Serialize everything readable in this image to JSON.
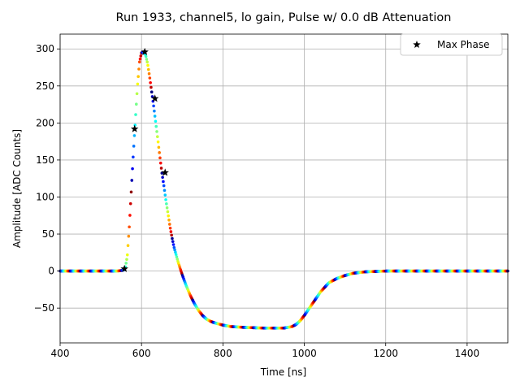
{
  "chart_data": {
    "type": "scatter",
    "title": "Run 1933, channel5, lo gain, Pulse w/ 0.0 dB Attenuation",
    "xlabel": "Time [ns]",
    "ylabel": "Amplitude [ADC Counts]",
    "xlim": [
      400,
      1500
    ],
    "ylim": [
      -97,
      320
    ],
    "xticks": [
      400,
      600,
      800,
      1000,
      1200,
      1400
    ],
    "yticks": [
      -50,
      0,
      50,
      100,
      150,
      200,
      250,
      300
    ],
    "ytick_labels": [
      "−50",
      "0",
      "50",
      "100",
      "150",
      "200",
      "250",
      "300"
    ],
    "grid": true,
    "legend_position": "top-right",
    "series": [
      {
        "name": "",
        "kind": "pulse-waveform",
        "color": "jet colormap (phase)",
        "x": [
          400,
          540,
          555,
          560,
          565,
          570,
          575,
          580,
          585,
          590,
          595,
          600,
          605,
          610,
          615,
          620,
          625,
          630,
          635,
          640,
          645,
          650,
          655,
          660,
          665,
          670,
          675,
          680,
          690,
          700,
          710,
          720,
          730,
          740,
          750,
          760,
          770,
          780,
          800,
          820,
          850,
          900,
          950,
          970,
          980,
          990,
          1000,
          1010,
          1020,
          1030,
          1040,
          1050,
          1060,
          1080,
          1100,
          1120,
          1150,
          1200,
          1300,
          1400,
          1500
        ],
        "y": [
          0,
          0,
          1,
          4,
          20,
          60,
          110,
          160,
          205,
          250,
          282,
          295,
          296,
          292,
          280,
          262,
          242,
          222,
          200,
          178,
          155,
          133,
          115,
          95,
          78,
          60,
          45,
          32,
          12,
          -5,
          -20,
          -33,
          -44,
          -53,
          -60,
          -65,
          -68,
          -70,
          -73,
          -75,
          -76,
          -77,
          -77,
          -75,
          -72,
          -67,
          -60,
          -52,
          -44,
          -36,
          -28,
          -22,
          -16,
          -10,
          -6,
          -3,
          -1,
          0,
          0,
          0,
          0
        ]
      },
      {
        "name": "Max Phase",
        "kind": "star-markers",
        "color": "#000000",
        "x": [
          558,
          583,
          608,
          633,
          658
        ],
        "y": [
          3,
          192,
          296,
          233,
          133
        ]
      }
    ]
  },
  "legend": {
    "label": "Max Phase",
    "marker_icon": "star-icon"
  }
}
